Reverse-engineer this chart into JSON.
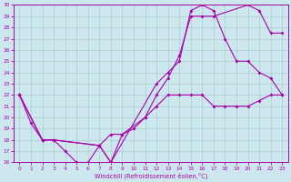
{
  "xlabel": "Windchill (Refroidissement éolien,°C)",
  "bg_color": "#cce8ee",
  "line_color": "#aa00aa",
  "grid_color": "#aacccc",
  "xlim": [
    -0.5,
    23.5
  ],
  "ylim": [
    16,
    30
  ],
  "xticks": [
    0,
    1,
    2,
    3,
    4,
    5,
    6,
    7,
    8,
    9,
    10,
    11,
    12,
    13,
    14,
    15,
    16,
    17,
    18,
    19,
    20,
    21,
    22,
    23
  ],
  "yticks": [
    16,
    17,
    18,
    19,
    20,
    21,
    22,
    23,
    24,
    25,
    26,
    27,
    28,
    29,
    30
  ],
  "line1_x": [
    0,
    1,
    2,
    3,
    4,
    5,
    6,
    7,
    8,
    9,
    10,
    11,
    12,
    13,
    14,
    15,
    16,
    17,
    18,
    19,
    20,
    21,
    22,
    23
  ],
  "line1_y": [
    22,
    19.5,
    18,
    18,
    17,
    16,
    16,
    17.5,
    18.5,
    18.5,
    19,
    20,
    21,
    22,
    22,
    22,
    22,
    21,
    21,
    21,
    21,
    21.5,
    22,
    22
  ],
  "line2_x": [
    0,
    2,
    3,
    7,
    8,
    9,
    11,
    12,
    13,
    14,
    15,
    16,
    17,
    20,
    21,
    22,
    23
  ],
  "line2_y": [
    22,
    18,
    18,
    17.5,
    16,
    18.5,
    20,
    22,
    23.5,
    25.5,
    29,
    29,
    29,
    30,
    29.5,
    27.5,
    27.5
  ],
  "line3_x": [
    0,
    2,
    3,
    7,
    8,
    12,
    13,
    14,
    15,
    16,
    17,
    18,
    19,
    20,
    21,
    22,
    23
  ],
  "line3_y": [
    22,
    18,
    18,
    17.5,
    16,
    23,
    24,
    25,
    29.5,
    30,
    29.5,
    27,
    25,
    25,
    24,
    23.5,
    22
  ]
}
